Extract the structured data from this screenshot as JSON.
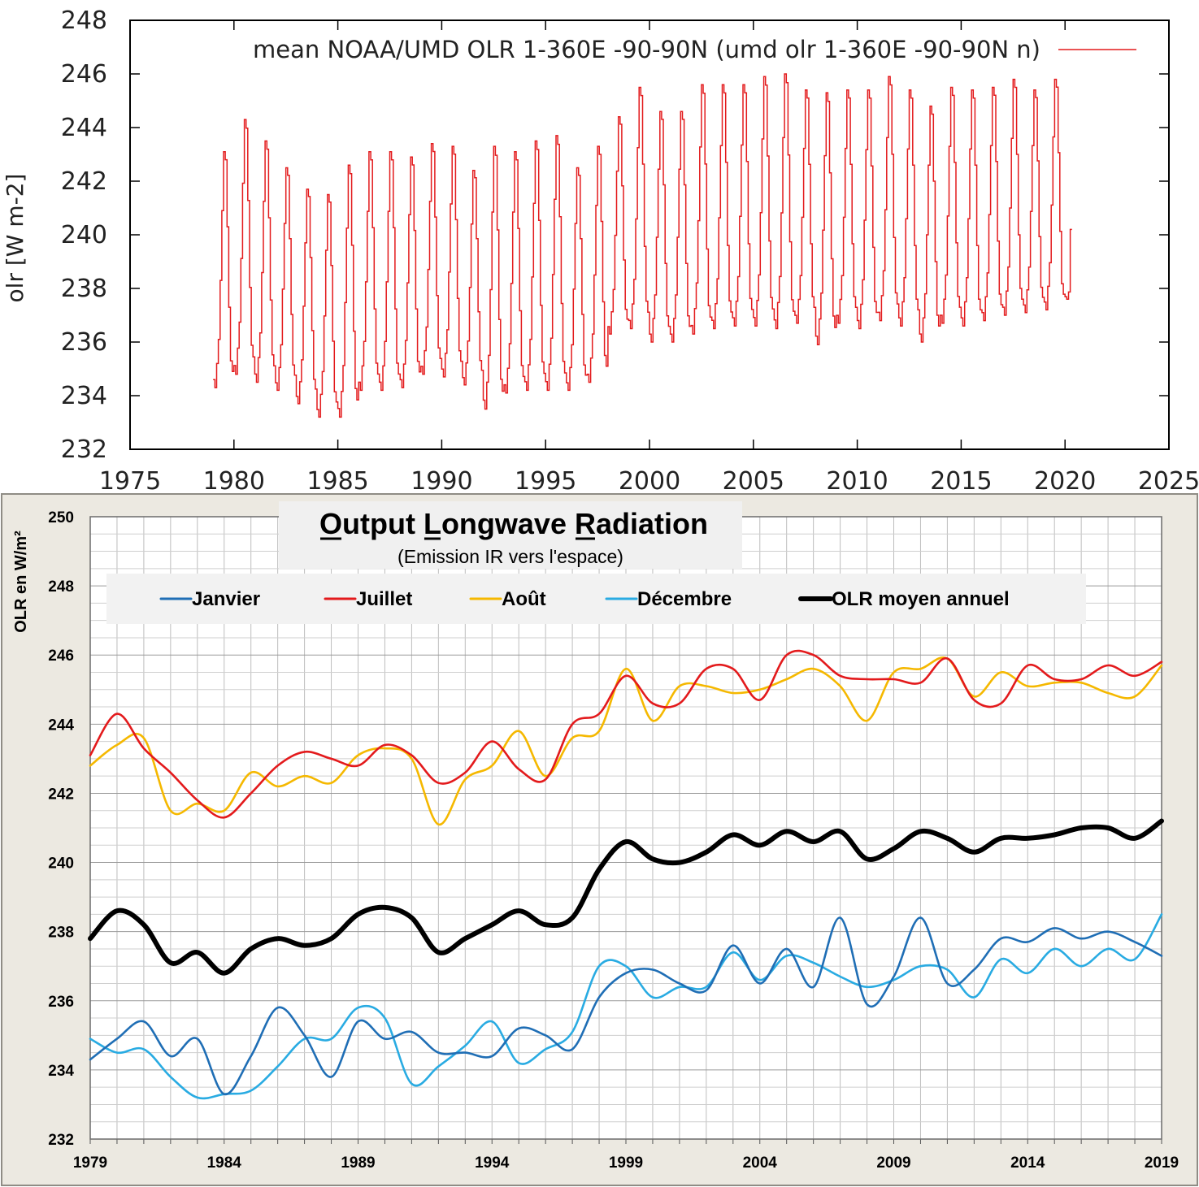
{
  "chart_data": [
    {
      "type": "line",
      "title": "",
      "xlabel": "",
      "ylabel": "olr [W m-2]",
      "xlim": [
        1975,
        2025
      ],
      "ylim": [
        232,
        248
      ],
      "xticks": [
        "1975",
        "1980",
        "1985",
        "1990",
        "1995",
        "2000",
        "2005",
        "2010",
        "2015",
        "2020",
        "2025"
      ],
      "yticks": [
        "232",
        "234",
        "236",
        "238",
        "240",
        "242",
        "244",
        "246",
        "248"
      ],
      "legend_position": "top",
      "grid": false,
      "step": true,
      "series": [
        {
          "name": "mean NOAA/UMD OLR 1-360E -90-90N (umd olr 1-360E -90-90N n)",
          "color": "#e31a1c",
          "x_start": 1979.0,
          "x_step_years": 0.0833333,
          "monthly_profile": [
            0.3,
            0.0,
            0.9,
            1.8,
            4.0,
            6.6,
            8.8,
            8.5,
            6.0,
            3.0,
            1.0,
            0.6
          ],
          "yearly_min": [
            234.3,
            234.8,
            234.5,
            234.2,
            233.7,
            233.2,
            233.2,
            234.2,
            234.2,
            234.3,
            234.8,
            234.7,
            234.4,
            233.5,
            234.1,
            234.2,
            234.2,
            234.2,
            234.5,
            236.3,
            236.5,
            236.0,
            236.0,
            236.3,
            236.5,
            236.6,
            236.6,
            236.5,
            236.7,
            235.9,
            236.7,
            236.5,
            236.8,
            236.6,
            236.0,
            236.7,
            236.6,
            236.8,
            237.0,
            237.1,
            237.2,
            237.6
          ],
          "yearly_max": [
            243.1,
            244.3,
            243.5,
            242.5,
            241.7,
            241.5,
            242.6,
            243.1,
            243.1,
            242.9,
            243.4,
            243.3,
            242.4,
            243.3,
            243.1,
            243.5,
            243.7,
            242.5,
            243.3,
            244.4,
            245.5,
            244.6,
            244.6,
            245.6,
            245.6,
            245.6,
            245.9,
            246.0,
            245.4,
            245.3,
            245.4,
            245.4,
            245.9,
            245.4,
            244.8,
            245.5,
            245.4,
            245.5,
            245.8,
            245.4,
            245.8,
            240.2
          ],
          "end_x": 2020.25,
          "end_value": 240.2
        }
      ]
    },
    {
      "type": "line",
      "title": "Output Longwave Radiation",
      "subtitle": "(Emission IR vers l'espace)",
      "xlabel": "",
      "ylabel": "OLR en W/m²",
      "xlim": [
        1979,
        2019
      ],
      "ylim": [
        232,
        250
      ],
      "xticks": [
        "1979",
        "1984",
        "1989",
        "1994",
        "1999",
        "2004",
        "2009",
        "2014",
        "2019"
      ],
      "yticks": [
        "232",
        "234",
        "236",
        "238",
        "240",
        "242",
        "244",
        "246",
        "248",
        "250"
      ],
      "legend_position": "top",
      "grid": true,
      "smooth": true,
      "categories": [
        1979,
        1980,
        1981,
        1982,
        1983,
        1984,
        1985,
        1986,
        1987,
        1988,
        1989,
        1990,
        1991,
        1992,
        1993,
        1994,
        1995,
        1996,
        1997,
        1998,
        1999,
        2000,
        2001,
        2002,
        2003,
        2004,
        2005,
        2006,
        2007,
        2008,
        2009,
        2010,
        2011,
        2012,
        2013,
        2014,
        2015,
        2016,
        2017,
        2018,
        2019
      ],
      "series": [
        {
          "name": "Janvier",
          "color": "#1f6eb5",
          "values": [
            234.3,
            234.9,
            235.4,
            234.4,
            234.9,
            233.3,
            234.4,
            235.8,
            235.0,
            233.8,
            235.4,
            234.9,
            235.1,
            234.5,
            234.5,
            234.4,
            235.2,
            235.0,
            234.6,
            236.1,
            236.8,
            236.9,
            236.5,
            236.3,
            237.6,
            236.5,
            237.5,
            236.4,
            238.4,
            235.9,
            236.7,
            238.4,
            236.5,
            236.9,
            237.8,
            237.7,
            238.1,
            237.8,
            238.0,
            237.7,
            237.3
          ]
        },
        {
          "name": "Juillet",
          "color": "#e31a1c",
          "values": [
            243.1,
            244.3,
            243.3,
            242.6,
            241.8,
            241.3,
            242.0,
            242.8,
            243.2,
            243.0,
            242.8,
            243.4,
            243.1,
            242.3,
            242.6,
            243.5,
            242.7,
            242.4,
            244.0,
            244.3,
            245.4,
            244.6,
            244.6,
            245.6,
            245.6,
            244.7,
            246.0,
            246.0,
            245.4,
            245.3,
            245.3,
            245.2,
            245.9,
            244.7,
            244.6,
            245.7,
            245.3,
            245.3,
            245.7,
            245.4,
            245.8
          ]
        },
        {
          "name": "Août",
          "color": "#f5b800",
          "values": [
            242.8,
            243.4,
            243.6,
            241.5,
            241.7,
            241.5,
            242.6,
            242.2,
            242.5,
            242.3,
            243.1,
            243.3,
            243.0,
            241.1,
            242.4,
            242.8,
            243.8,
            242.5,
            243.6,
            243.8,
            245.6,
            244.1,
            245.1,
            245.1,
            244.9,
            245.0,
            245.3,
            245.6,
            245.1,
            244.1,
            245.5,
            245.6,
            245.9,
            244.8,
            245.5,
            245.1,
            245.2,
            245.2,
            244.9,
            244.8,
            245.7
          ]
        },
        {
          "name": "Décembre",
          "color": "#29abe2",
          "values": [
            234.9,
            234.5,
            234.6,
            233.8,
            233.2,
            233.3,
            233.4,
            234.1,
            234.9,
            234.9,
            235.8,
            235.5,
            233.6,
            234.1,
            234.7,
            235.4,
            234.2,
            234.6,
            235.1,
            237.0,
            237.0,
            236.1,
            236.4,
            236.4,
            237.4,
            236.6,
            237.3,
            237.1,
            236.7,
            236.4,
            236.6,
            237.0,
            236.9,
            236.1,
            237.2,
            236.8,
            237.5,
            237.0,
            237.5,
            237.2,
            238.5
          ]
        },
        {
          "name": "OLR moyen annuel",
          "color": "#000000",
          "values": [
            237.8,
            238.6,
            238.2,
            237.1,
            237.4,
            236.8,
            237.5,
            237.8,
            237.6,
            237.8,
            238.5,
            238.7,
            238.4,
            237.4,
            237.8,
            238.2,
            238.6,
            238.2,
            238.4,
            239.8,
            240.6,
            240.1,
            240.0,
            240.3,
            240.8,
            240.5,
            240.9,
            240.6,
            240.9,
            240.1,
            240.4,
            240.9,
            240.7,
            240.3,
            240.7,
            240.7,
            240.8,
            241.0,
            241.0,
            240.7,
            241.2
          ]
        }
      ]
    }
  ]
}
